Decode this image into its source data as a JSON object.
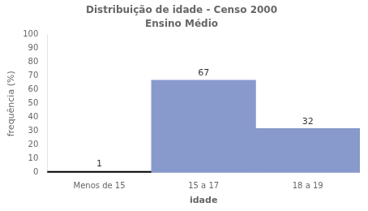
{
  "chart_data": {
    "type": "bar",
    "title": "Distribuição de idade - Censo 2000",
    "subtitle": "Ensino Médio",
    "x_label": "idade",
    "y_label": "frequência (%)",
    "categories": [
      "Menos de 15",
      "15 a 17",
      "18 a 19"
    ],
    "values": [
      1,
      67,
      32
    ],
    "colors": [
      "#000000",
      "#8899cc",
      "#8899cc"
    ],
    "ylim": [
      0,
      100
    ],
    "yticks": [
      0,
      10,
      20,
      30,
      40,
      50,
      60,
      70,
      80,
      90,
      100
    ],
    "grid": false,
    "data_labels": true
  }
}
